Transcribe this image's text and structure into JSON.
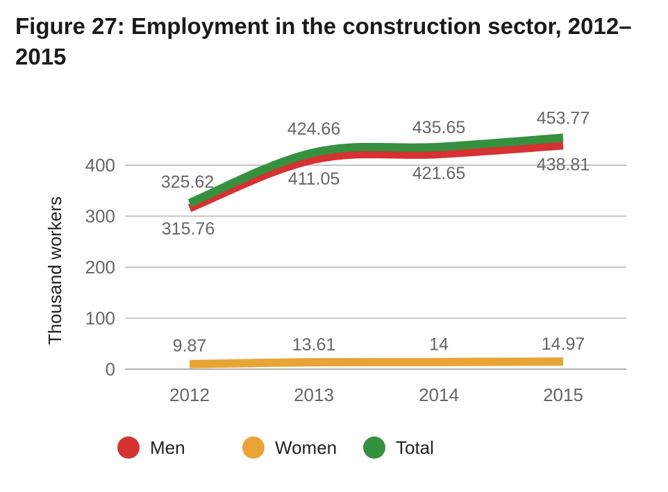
{
  "chart_data": {
    "type": "line",
    "title": "Figure 27: Employment in the construction sector, 2012–2015",
    "ylabel": "Thousand workers",
    "xlabel": "",
    "x": [
      "2012",
      "2013",
      "2014",
      "2015"
    ],
    "ylim": [
      0,
      400
    ],
    "yticks": [
      0,
      100,
      200,
      300,
      400
    ],
    "grid": true,
    "legend_position": "bottom",
    "series": [
      {
        "name": "Men",
        "color": "#d63232",
        "values": [
          315.76,
          411.05,
          421.65,
          438.81
        ],
        "labels": [
          "315.76",
          "411.05",
          "421.65",
          "438.81"
        ]
      },
      {
        "name": "Women",
        "color": "#e8a535",
        "values": [
          9.87,
          13.61,
          14,
          14.97
        ],
        "labels": [
          "9.87",
          "13.61",
          "14",
          "14.97"
        ]
      },
      {
        "name": "Total",
        "color": "#36913f",
        "values": [
          325.62,
          424.66,
          435.65,
          453.77
        ],
        "labels": [
          "325.62",
          "424.66",
          "435.65",
          "453.77"
        ]
      }
    ]
  }
}
